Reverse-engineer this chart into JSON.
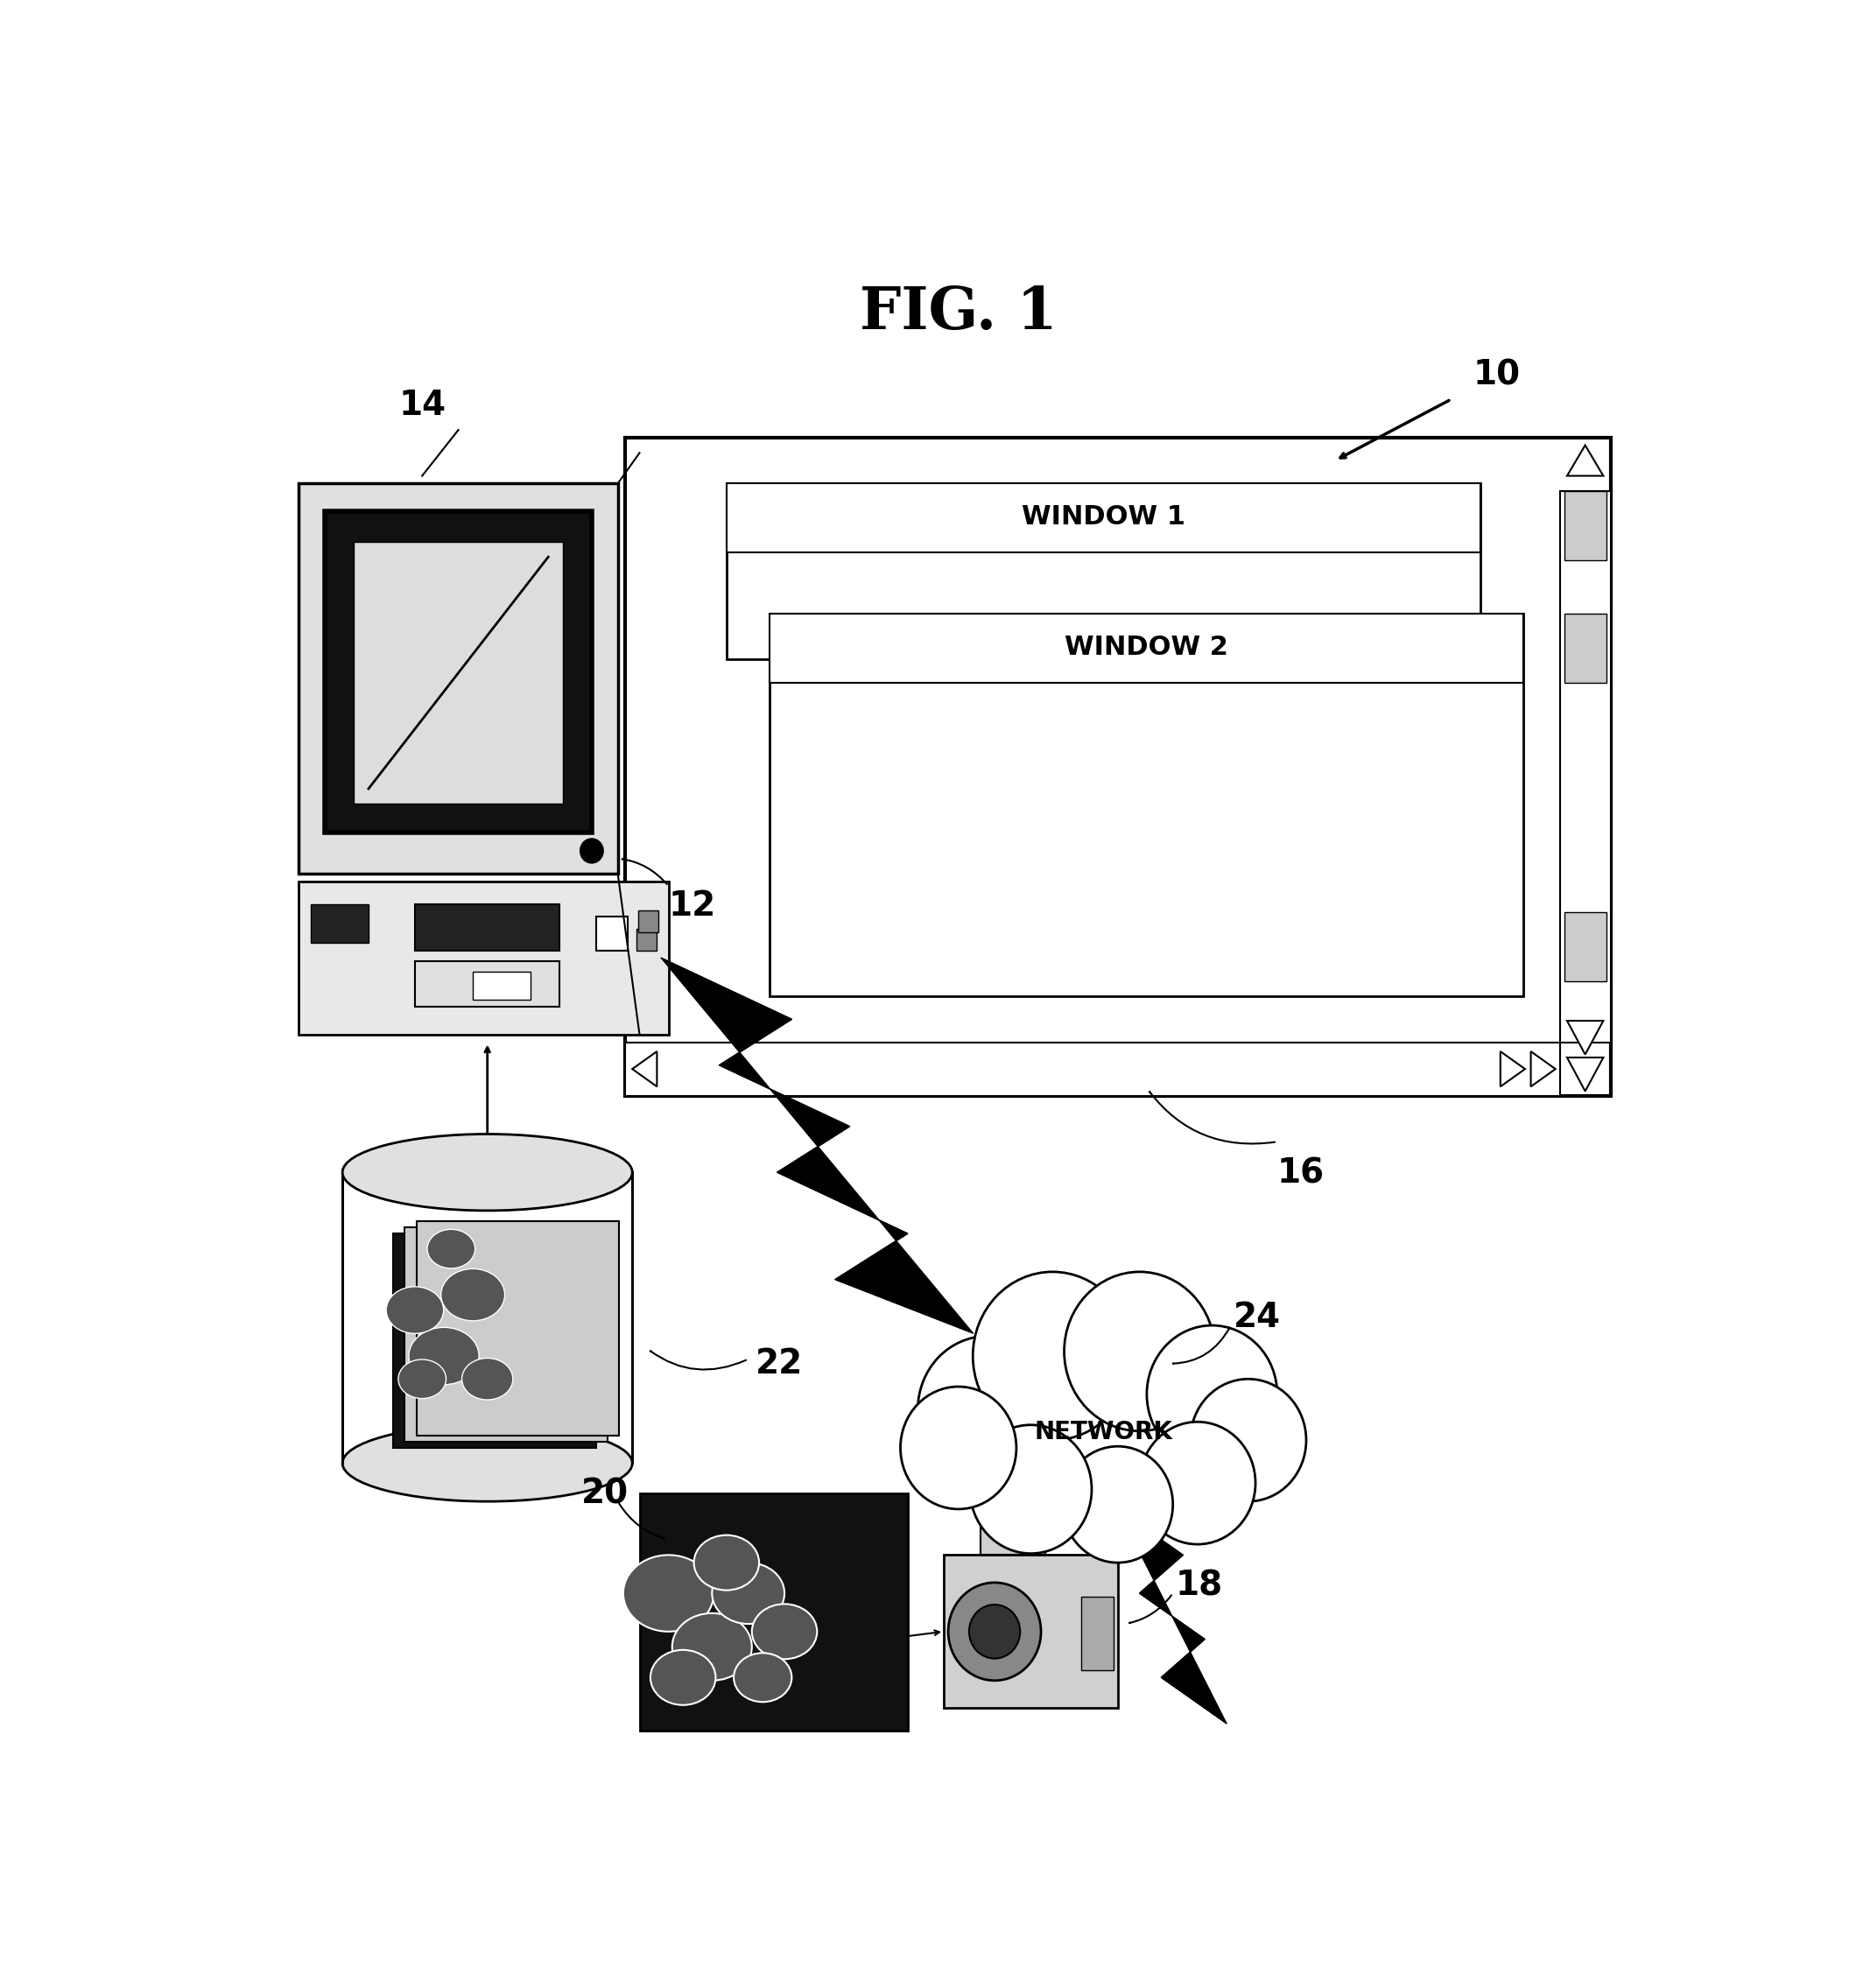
{
  "title": "FIG. 1",
  "title_fontsize": 48,
  "title_fontweight": "bold",
  "background_color": "#ffffff",
  "window1_text": "WINDOW 1",
  "window2_text": "WINDOW 2",
  "network_text": "NETWORK",
  "label_fontsize": 28,
  "black": "#000000"
}
